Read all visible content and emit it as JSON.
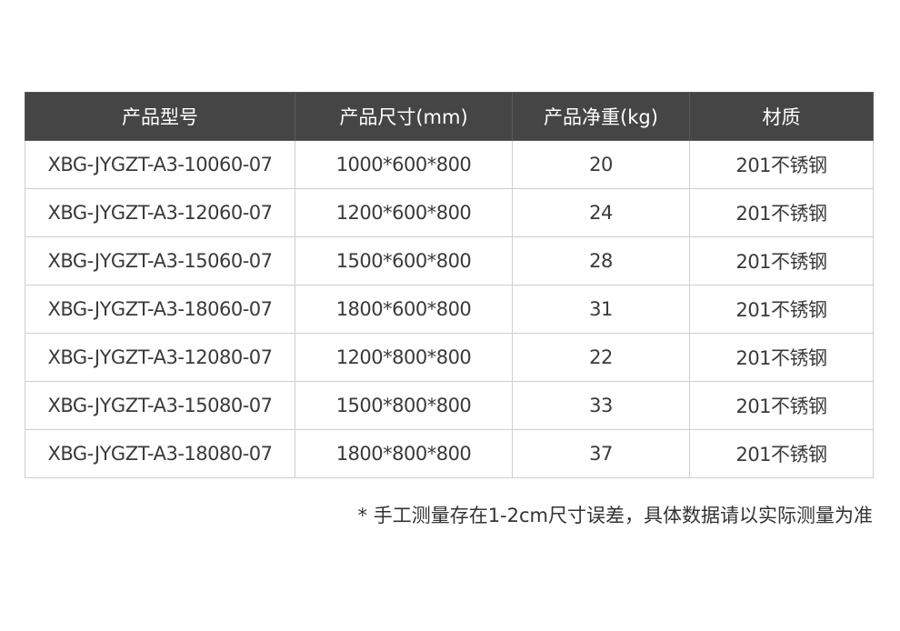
{
  "table": {
    "headers": [
      "产品型号",
      "产品尺寸(mm)",
      "产品净重(kg)",
      "材质"
    ],
    "rows": [
      [
        "XBG-JYGZT-A3-10060-07",
        "1000*600*800",
        "20",
        "201不锈钢"
      ],
      [
        "XBG-JYGZT-A3-12060-07",
        "1200*600*800",
        "24",
        "201不锈钢"
      ],
      [
        "XBG-JYGZT-A3-15060-07",
        "1500*600*800",
        "28",
        "201不锈钢"
      ],
      [
        "XBG-JYGZT-A3-18060-07",
        "1800*600*800",
        "31",
        "201不锈钢"
      ],
      [
        "XBG-JYGZT-A3-12080-07",
        "1200*800*800",
        "22",
        "201不锈钢"
      ],
      [
        "XBG-JYGZT-A3-15080-07",
        "1500*800*800",
        "33",
        "201不锈钢"
      ],
      [
        "XBG-JYGZT-A3-18080-07",
        "1800*800*800",
        "37",
        "201不锈钢"
      ]
    ]
  },
  "note": "* 手工测量存在1-2cm尺寸误差，具体数据请以实际测量为准",
  "colors": {
    "header_bg": "#454545",
    "header_text": "#ffffff",
    "border": "#cfcfcf"
  }
}
